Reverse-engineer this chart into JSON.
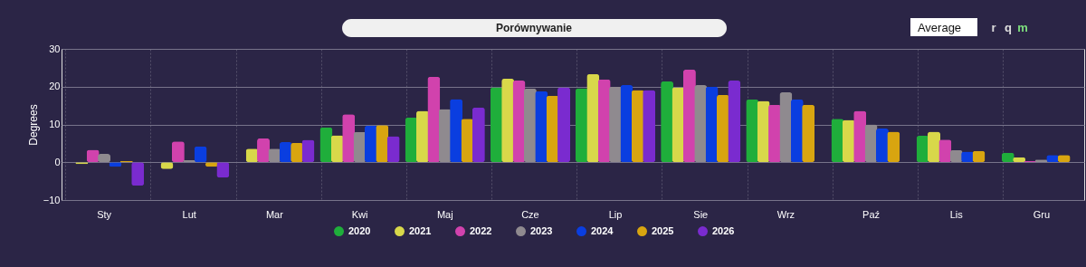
{
  "chart_data": {
    "type": "bar",
    "title": "Porównywanie",
    "ylabel": "Degrees",
    "categories": [
      "Sty",
      "Lut",
      "Mar",
      "Kwi",
      "Maj",
      "Cze",
      "Lip",
      "Sie",
      "Wrz",
      "Paź",
      "Lis",
      "Gru"
    ],
    "series": [
      {
        "name": "2020",
        "color": "#1fae3b",
        "values": [
          null,
          null,
          null,
          9.2,
          11.8,
          19.8,
          19.6,
          21.4,
          16.6,
          11.5,
          7.0,
          2.5
        ]
      },
      {
        "name": "2021",
        "color": "#d8d84a",
        "values": [
          -0.5,
          -1.8,
          3.6,
          7.1,
          13.6,
          22.1,
          23.3,
          19.8,
          16.2,
          11.2,
          8.1,
          1.3
        ]
      },
      {
        "name": "2022",
        "color": "#d142ad",
        "values": [
          3.3,
          5.5,
          6.3,
          12.7,
          22.6,
          21.6,
          21.9,
          24.5,
          15.2,
          13.6,
          6.0,
          0.3
        ]
      },
      {
        "name": "2023",
        "color": "#8f8a8f",
        "values": [
          2.2,
          0.6,
          3.6,
          8.0,
          14.1,
          19.5,
          20.0,
          20.4,
          18.5,
          10.0,
          3.2,
          0.7
        ]
      },
      {
        "name": "2024",
        "color": "#0a3ee0",
        "values": [
          -1.2,
          4.2,
          5.3,
          9.7,
          16.7,
          18.8,
          20.4,
          20.0,
          16.6,
          8.9,
          2.8,
          1.9
        ]
      },
      {
        "name": "2025",
        "color": "#d8a510",
        "values": [
          0.3,
          -1.2,
          5.1,
          9.8,
          11.5,
          17.6,
          19.1,
          17.8,
          15.2,
          8.1,
          3.0,
          1.9
        ]
      },
      {
        "name": "2026",
        "color": "#7a2bcf",
        "values": [
          -6.2,
          -4.1,
          5.9,
          6.9,
          14.5,
          19.8,
          19.1,
          21.6,
          null,
          null,
          null,
          null
        ]
      }
    ],
    "ylim": [
      -10,
      30
    ],
    "yticks": [
      -10,
      0,
      10,
      20,
      30
    ],
    "grid": true,
    "legend": "bottom",
    "annotations": [
      "Average",
      "r",
      "q",
      "m"
    ]
  }
}
